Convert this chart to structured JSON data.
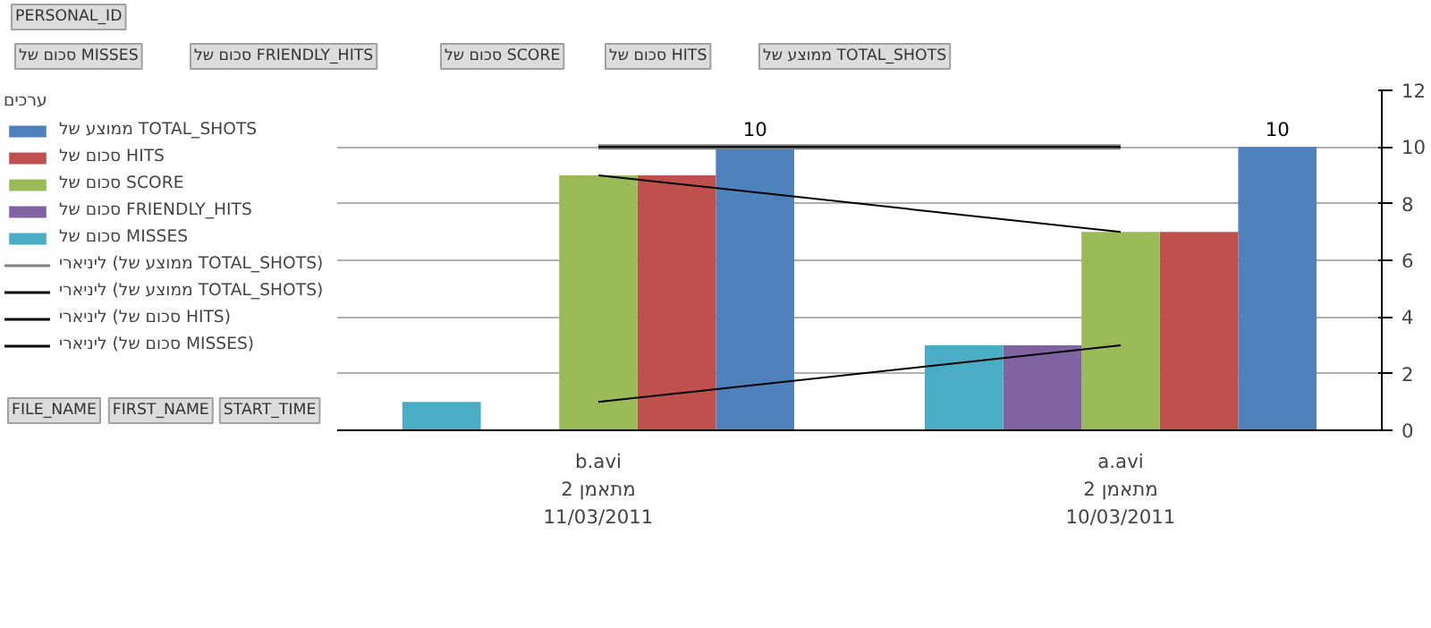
{
  "chart_data": {
    "type": "bar",
    "categories": [
      "b.avi\nמתאמן 2\n11/03/2011",
      "a.avi\nמתאמן 2\n10/03/2011"
    ],
    "series": [
      {
        "name": "ממוצע של TOTAL_SHOTS",
        "color": "#4f81bd",
        "values": [
          10,
          10
        ],
        "value_labels": [
          "10",
          "10"
        ]
      },
      {
        "name": "סכום של HITS",
        "color": "#c0504d",
        "values": [
          9,
          7
        ]
      },
      {
        "name": "סכום של SCORE",
        "color": "#9bbb59",
        "values": [
          9,
          7
        ]
      },
      {
        "name": "סכום של FRIENDLY_HITS",
        "color": "#8064a2",
        "values": [
          null,
          3
        ]
      },
      {
        "name": "סכום של MISSES",
        "color": "#4bacc6",
        "values": [
          1,
          3
        ]
      },
      {
        "name": "ליניארי (ממוצע של TOTAL_SHOTS)",
        "type": "line",
        "color": "#808080",
        "values": [
          10,
          10
        ]
      },
      {
        "name": "ליניארי (ממוצע של TOTAL_SHOTS)",
        "type": "line",
        "color": "#000000",
        "values": [
          10,
          10
        ]
      },
      {
        "name": "ליניארי (סכום של HITS)",
        "type": "line",
        "color": "#000000",
        "values": [
          9,
          7
        ]
      },
      {
        "name": "ליניארי (סכום של MISSES)",
        "type": "line",
        "color": "#000000",
        "values": [
          1,
          3
        ]
      }
    ],
    "ylim": [
      0,
      12
    ],
    "yticks": [
      0,
      2,
      4,
      6,
      8,
      10,
      12
    ],
    "grid": "y",
    "legend": "left",
    "legend_title": "ערכים",
    "annotations": [
      "PERSONAL_ID",
      "סכום של MISSES",
      "סכום של FRIENDLY_HITS",
      "סכום של SCORE",
      "סכום של HITS",
      "ממוצע של TOTAL_SHOTS",
      "FILE_NAME",
      "FIRST_NAME",
      "START_TIME"
    ]
  }
}
